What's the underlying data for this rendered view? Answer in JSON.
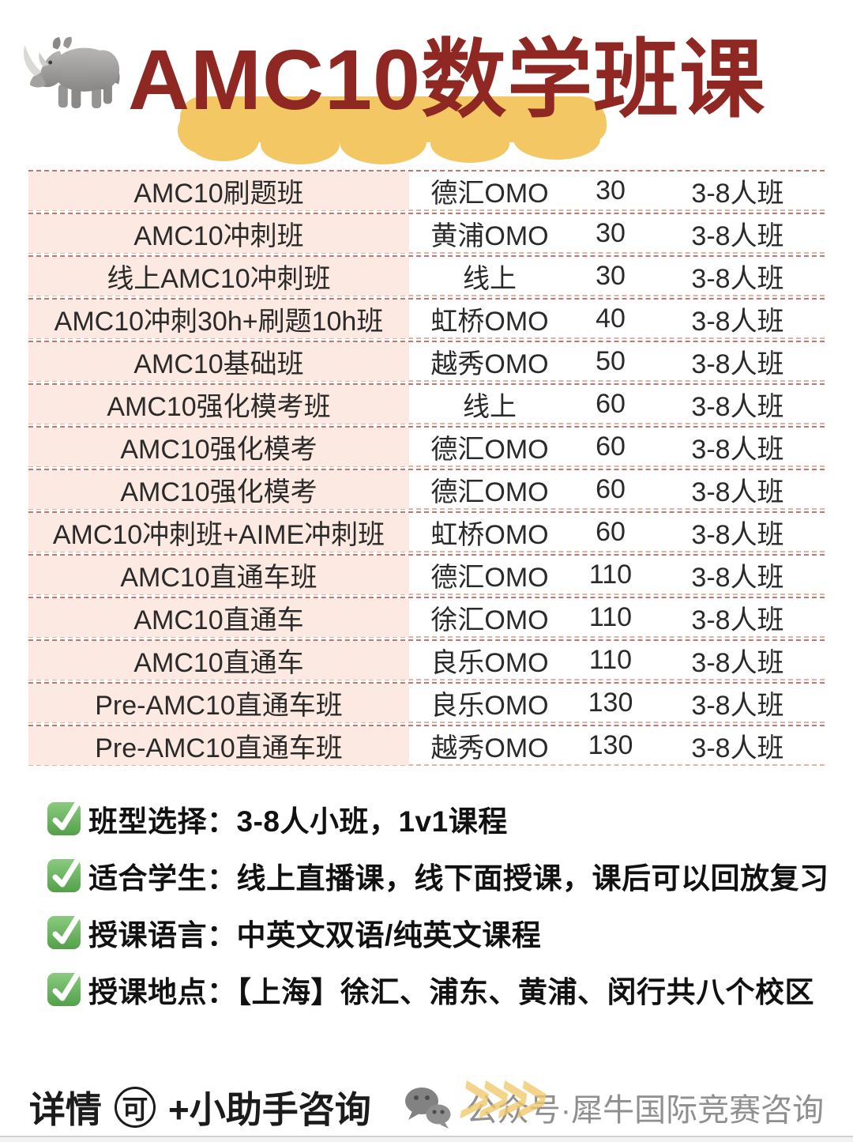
{
  "header": {
    "title": "AMC10数学班课"
  },
  "table": {
    "rows": [
      {
        "name": "AMC10刷题班",
        "campus": "德汇OMO",
        "hours": "30",
        "size": "3-8人班"
      },
      {
        "name": "AMC10冲刺班",
        "campus": "黄浦OMO",
        "hours": "30",
        "size": "3-8人班"
      },
      {
        "name": "线上AMC10冲刺班",
        "campus": "线上",
        "hours": "30",
        "size": "3-8人班"
      },
      {
        "name": "AMC10冲刺30h+刷题10h班",
        "campus": "虹桥OMO",
        "hours": "40",
        "size": "3-8人班"
      },
      {
        "name": "AMC10基础班",
        "campus": "越秀OMO",
        "hours": "50",
        "size": "3-8人班"
      },
      {
        "name": "AMC10强化模考班",
        "campus": "线上",
        "hours": "60",
        "size": "3-8人班"
      },
      {
        "name": "AMC10强化模考",
        "campus": "德汇OMO",
        "hours": "60",
        "size": "3-8人班"
      },
      {
        "name": "AMC10强化模考",
        "campus": "德汇OMO",
        "hours": "60",
        "size": "3-8人班"
      },
      {
        "name": "AMC10冲刺班+AIME冲刺班",
        "campus": "虹桥OMO",
        "hours": "60",
        "size": "3-8人班"
      },
      {
        "name": "AMC10直通车班",
        "campus": "德汇OMO",
        "hours": "110",
        "size": "3-8人班"
      },
      {
        "name": "AMC10直通车",
        "campus": "徐汇OMO",
        "hours": "110",
        "size": "3-8人班"
      },
      {
        "name": "AMC10直通车",
        "campus": "良乐OMO",
        "hours": "110",
        "size": "3-8人班"
      },
      {
        "name": "Pre-AMC10直通车班",
        "campus": "良乐OMO",
        "hours": "130",
        "size": "3-8人班"
      },
      {
        "name": "Pre-AMC10直通车班",
        "campus": "越秀OMO",
        "hours": "130",
        "size": "3-8人班"
      }
    ]
  },
  "features": [
    {
      "text": "班型选择：3-8人小班，1v1课程"
    },
    {
      "text": "适合学生：线上直播课，线下面授课，课后可以回放复习"
    },
    {
      "text": "授课语言：中英文双语/纯英文课程"
    },
    {
      "text": "授课地点：【上海】徐汇、浦东、黄浦、闵行共八个校区"
    }
  ],
  "footer": {
    "detail_prefix": "详情",
    "circled_char": "可",
    "detail_suffix": "+小助手咨询",
    "chevrons": ">>>>",
    "account_text": "公众号·犀牛国际竞赛咨询"
  },
  "colors": {
    "title_red": "#8f2722",
    "highlight_yellow": "#f3c763",
    "row_pink": "#fce9e1",
    "dash_dark": "#c1756b",
    "dash_light": "#e0b3a6",
    "check_green": "#53a04a",
    "chevron_yellow": "#f2c86b",
    "footer_gray": "#8f8f8f"
  }
}
